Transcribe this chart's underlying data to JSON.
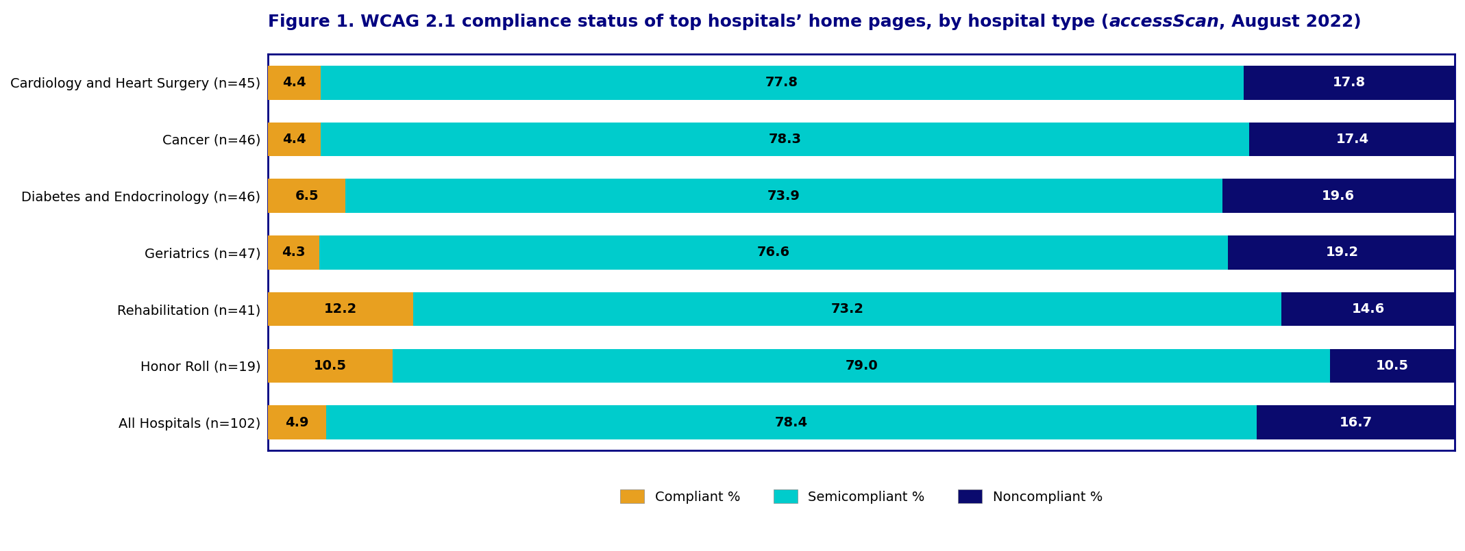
{
  "categories": [
    "Cardiology and Heart Surgery (n=45)",
    "Cancer (n=46)",
    "Diabetes and Endocrinology (n=46)",
    "Geriatrics (n=47)",
    "Rehabilitation (n=41)",
    "Honor Roll (n=19)",
    "All Hospitals (n=102)"
  ],
  "compliant": [
    4.4,
    4.4,
    6.5,
    4.3,
    12.2,
    10.5,
    4.9
  ],
  "semicompliant": [
    77.8,
    78.3,
    73.9,
    76.6,
    73.2,
    79.0,
    78.4
  ],
  "noncompliant": [
    17.8,
    17.4,
    19.6,
    19.2,
    14.6,
    10.5,
    16.7
  ],
  "color_compliant": "#E8A020",
  "color_semicompliant": "#00CCCC",
  "color_noncompliant": "#0A0A6E",
  "bar_height": 0.6,
  "xlim": [
    0,
    100
  ],
  "legend_labels": [
    "Compliant %",
    "Semicompliant %",
    "Noncompliant %"
  ],
  "title_prefix": "Figure 1. WCAG 2.1 compliance status of top hospitals’ home pages, by hospital type (",
  "title_italic": "accessScan",
  "title_suffix": ", August 2022)",
  "title_fontsize": 18,
  "tick_fontsize": 14,
  "value_fontsize": 14,
  "legend_fontsize": 14,
  "background_color": "#FFFFFF",
  "plot_bg_color": "#FFFFFF",
  "border_color": "#000080",
  "grid_color": "#CCCCCC",
  "text_color_dark": "#000000",
  "text_color_light": "#FFFFFF"
}
